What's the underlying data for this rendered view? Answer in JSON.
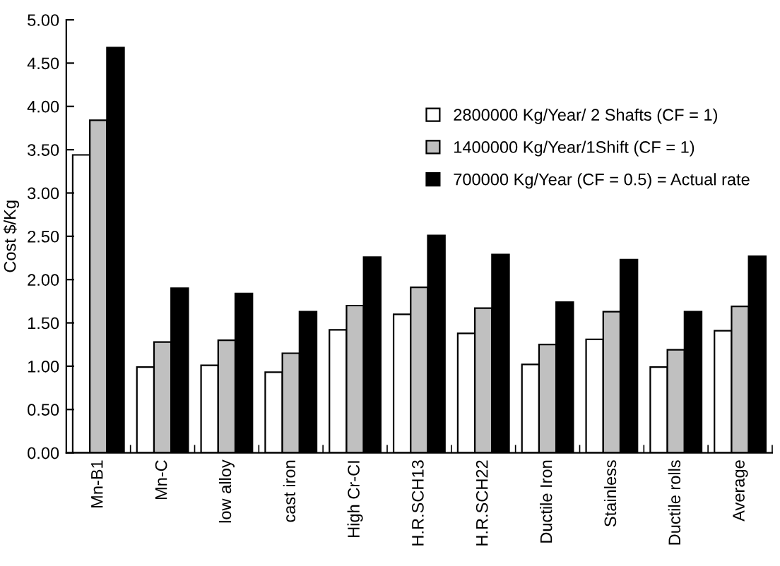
{
  "chart_data": {
    "type": "bar",
    "ylabel": "Cost $/Kg",
    "categories": [
      "Mn-B1",
      "Mn-C",
      "low alloy",
      "cast iron",
      "High Cr-CI",
      "H.R.SCH13",
      "H.R.SCH22",
      "Ductile Iron",
      "Stainless",
      "Ductile rolls",
      "Average"
    ],
    "series": [
      {
        "name": "2800000 Kg/Year/ 2 Shafts (CF = 1)",
        "color": "#ffffff",
        "values": [
          3.44,
          0.99,
          1.01,
          0.93,
          1.42,
          1.6,
          1.38,
          1.02,
          1.31,
          0.99,
          1.41
        ]
      },
      {
        "name": "1400000 Kg/Year/1Shift (CF = 1)",
        "color": "#c0c0c0",
        "values": [
          3.84,
          1.28,
          1.3,
          1.15,
          1.7,
          1.91,
          1.67,
          1.25,
          1.63,
          1.19,
          1.69
        ]
      },
      {
        "name": "700000 Kg/Year (CF = 0.5) = Actual rate",
        "color": "#000000",
        "values": [
          4.68,
          1.9,
          1.84,
          1.63,
          2.26,
          2.51,
          2.29,
          1.74,
          2.23,
          1.63,
          2.27
        ]
      }
    ],
    "ylim": [
      0,
      5
    ],
    "yticks": [
      {
        "value": 0,
        "label": "0.00"
      },
      {
        "value": 0.5,
        "label": "0.50"
      },
      {
        "value": 1,
        "label": "1.00"
      },
      {
        "value": 1.5,
        "label": "1.50"
      },
      {
        "value": 2,
        "label": "2.00"
      },
      {
        "value": 2.5,
        "label": "2.50"
      },
      {
        "value": 3,
        "label": "3.00"
      },
      {
        "value": 3.5,
        "label": "3.50"
      },
      {
        "value": 4,
        "label": "4.00"
      },
      {
        "value": 4.5,
        "label": "4.50"
      },
      {
        "value": 5,
        "label": "5.00"
      }
    ],
    "grid": false,
    "legend": "top right"
  }
}
